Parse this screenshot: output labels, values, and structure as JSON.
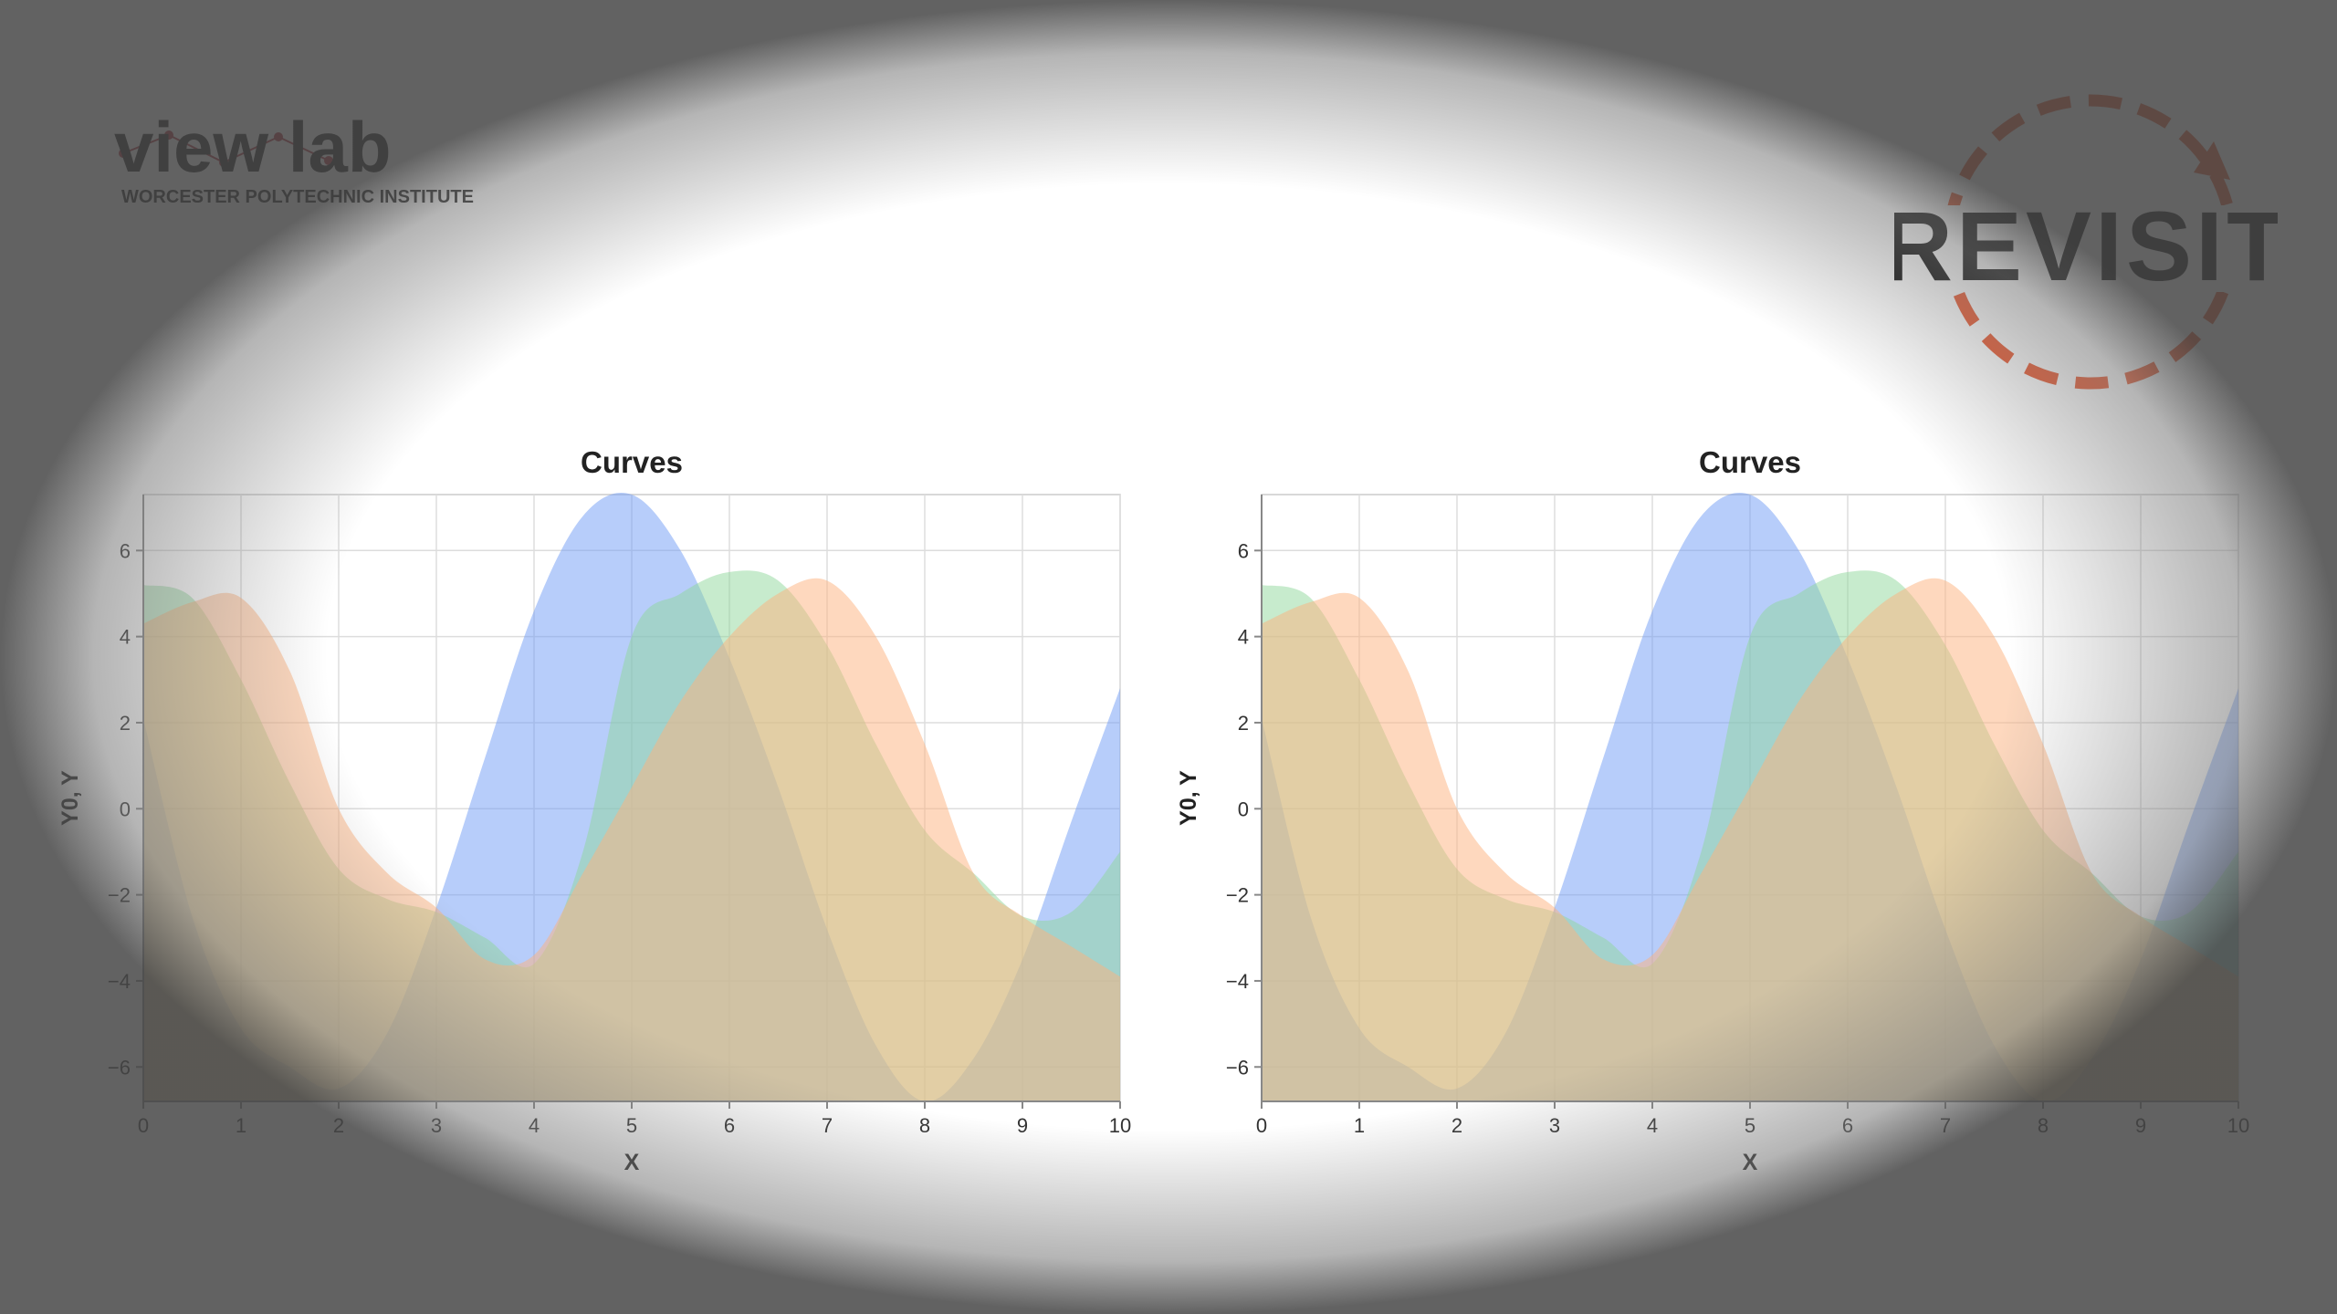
{
  "header": {
    "lab_logo_text": "view lab",
    "lab_logo_subtitle": "WORCESTER POLYTECHNIC INSTITUTE",
    "revisit_logo_text": "REVISIT"
  },
  "colors": {
    "blue": "#6f9bf5",
    "green": "#8fd89b",
    "orange": "#fdb17e",
    "revisit_accent": "#ea5a32"
  },
  "chart_data": [
    {
      "type": "area",
      "title": "Curves",
      "xlabel": "X",
      "ylabel": "Y0, Y",
      "xlim": [
        0,
        10
      ],
      "ylim": [
        -6.8,
        7.3
      ],
      "xticks": [
        "0",
        "1",
        "2",
        "3",
        "4",
        "5",
        "6",
        "7",
        "8",
        "9",
        "10"
      ],
      "yticks": [
        "−6",
        "−4",
        "−2",
        "0",
        "2",
        "4",
        "6"
      ],
      "grid": true,
      "x": [
        0,
        0.5,
        1,
        1.5,
        2,
        2.5,
        3,
        3.5,
        4,
        4.5,
        5,
        5.5,
        6,
        6.5,
        7,
        7.5,
        8,
        8.5,
        9,
        9.5,
        10
      ],
      "series": [
        {
          "color": "#6f9bf5",
          "values": [
            2.1,
            -2.5,
            -5.1,
            -6.0,
            -6.5,
            -5.2,
            -2.3,
            1.2,
            4.6,
            6.8,
            7.3,
            6.0,
            3.5,
            0.5,
            -2.8,
            -5.5,
            -6.8,
            -5.8,
            -3.5,
            -0.3,
            2.8
          ]
        },
        {
          "color": "#8fd89b",
          "values": [
            5.2,
            4.9,
            3.0,
            0.6,
            -1.4,
            -2.1,
            -2.4,
            -3.0,
            -3.6,
            -1.0,
            4.0,
            5.0,
            5.5,
            5.3,
            3.8,
            1.5,
            -0.5,
            -1.5,
            -2.5,
            -2.4,
            -1.0
          ]
        },
        {
          "color": "#fdb17e",
          "values": [
            4.3,
            4.8,
            4.9,
            3.2,
            0.0,
            -1.5,
            -2.3,
            -3.5,
            -3.4,
            -1.5,
            0.5,
            2.5,
            4.0,
            5.0,
            5.3,
            4.0,
            1.5,
            -1.5,
            -2.5,
            -3.2,
            -3.9
          ]
        }
      ]
    },
    {
      "type": "area",
      "title": "Curves",
      "xlabel": "X",
      "ylabel": "Y0, Y",
      "xlim": [
        0,
        10
      ],
      "ylim": [
        -6.8,
        7.3
      ],
      "xticks": [
        "0",
        "1",
        "2",
        "3",
        "4",
        "5",
        "6",
        "7",
        "8",
        "9",
        "10"
      ],
      "yticks": [
        "−6",
        "−4",
        "−2",
        "0",
        "2",
        "4",
        "6"
      ],
      "grid": true,
      "x": [
        0,
        0.5,
        1,
        1.5,
        2,
        2.5,
        3,
        3.5,
        4,
        4.5,
        5,
        5.5,
        6,
        6.5,
        7,
        7.5,
        8,
        8.5,
        9,
        9.5,
        10
      ],
      "series": [
        {
          "color": "#6f9bf5",
          "values": [
            2.1,
            -2.5,
            -5.1,
            -6.0,
            -6.5,
            -5.2,
            -2.3,
            1.2,
            4.6,
            6.8,
            7.3,
            6.0,
            3.5,
            0.5,
            -2.8,
            -5.5,
            -6.8,
            -5.8,
            -3.5,
            -0.3,
            2.8
          ]
        },
        {
          "color": "#8fd89b",
          "values": [
            5.2,
            4.9,
            3.0,
            0.6,
            -1.4,
            -2.1,
            -2.4,
            -3.0,
            -3.6,
            -1.0,
            4.0,
            5.0,
            5.5,
            5.3,
            3.8,
            1.5,
            -0.5,
            -1.5,
            -2.5,
            -2.4,
            -1.0
          ]
        },
        {
          "color": "#fdb17e",
          "values": [
            4.3,
            4.8,
            4.9,
            3.2,
            0.0,
            -1.5,
            -2.3,
            -3.5,
            -3.4,
            -1.5,
            0.5,
            2.5,
            4.0,
            5.0,
            5.3,
            4.0,
            1.5,
            -1.5,
            -2.5,
            -3.2,
            -3.9
          ]
        }
      ]
    }
  ]
}
